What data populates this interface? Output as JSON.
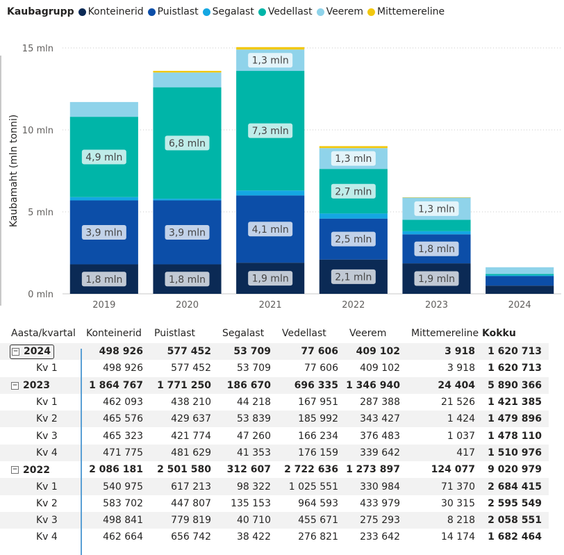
{
  "legend": {
    "title": "Kaubagrupp",
    "items": [
      {
        "name": "Konteinerid",
        "color": "#0b2a55"
      },
      {
        "name": "Puistlast",
        "color": "#0c4ea8"
      },
      {
        "name": "Segalast",
        "color": "#14a7e2"
      },
      {
        "name": "Vedellast",
        "color": "#00b5a8"
      },
      {
        "name": "Veerem",
        "color": "#8fd3ea"
      },
      {
        "name": "Mittemereline",
        "color": "#f2c80f"
      }
    ]
  },
  "chart_data": {
    "type": "bar",
    "stacked": true,
    "categories": [
      "2019",
      "2020",
      "2021",
      "2022",
      "2023",
      "2024"
    ],
    "ylabel": "Kaubamaht (mln tonni)",
    "ylim": [
      0,
      15
    ],
    "yticks": [
      "0 mln",
      "5 mln",
      "10 mln",
      "15 mln"
    ],
    "ytick_values": [
      0,
      5,
      10,
      15
    ],
    "grid": true,
    "legend_position": "top-left",
    "series": [
      {
        "name": "Konteinerid",
        "color": "#0b2a55",
        "values": [
          1.8,
          1.8,
          1.9,
          2.09,
          1.86,
          0.5
        ],
        "labels": [
          "1,8 mln",
          "1,8 mln",
          "1,9 mln",
          "2,1 mln",
          "1,9 mln",
          ""
        ]
      },
      {
        "name": "Puistlast",
        "color": "#0c4ea8",
        "values": [
          3.9,
          3.9,
          4.1,
          2.5,
          1.77,
          0.58
        ],
        "labels": [
          "3,9 mln",
          "3,9 mln",
          "4,1 mln",
          "2,5 mln",
          "1,8 mln",
          ""
        ]
      },
      {
        "name": "Segalast",
        "color": "#14a7e2",
        "values": [
          0.2,
          0.1,
          0.3,
          0.31,
          0.19,
          0.05
        ],
        "labels": [
          "",
          "",
          "",
          "",
          "",
          ""
        ]
      },
      {
        "name": "Vedellast",
        "color": "#00b5a8",
        "values": [
          4.9,
          6.8,
          7.3,
          2.72,
          0.7,
          0.08
        ],
        "labels": [
          "4,9 mln",
          "6,8 mln",
          "7,3 mln",
          "2,7 mln",
          "",
          ""
        ]
      },
      {
        "name": "Veerem",
        "color": "#8fd3ea",
        "values": [
          0.9,
          0.9,
          1.3,
          1.27,
          1.35,
          0.41
        ],
        "labels": [
          "",
          "",
          "1,3 mln",
          "1,3 mln",
          "1,3 mln",
          ""
        ]
      },
      {
        "name": "Mittemereline",
        "color": "#f2c80f",
        "values": [
          0.0,
          0.1,
          0.15,
          0.12,
          0.02,
          0.0
        ],
        "labels": [
          "",
          "",
          "",
          "",
          "",
          ""
        ]
      }
    ]
  },
  "table": {
    "headers": [
      "Aasta/kvartal",
      "Konteinerid",
      "Puistlast",
      "Segalast",
      "Vedellast",
      "Veerem",
      "Mittemereline",
      "Kokku"
    ],
    "rows": [
      {
        "type": "year",
        "selected": true,
        "cells": [
          "2024",
          "498 926",
          "577 452",
          "53 709",
          "77 606",
          "409 102",
          "3 918",
          "1 620 713"
        ]
      },
      {
        "type": "quarter",
        "cells": [
          "Kv 1",
          "498 926",
          "577 452",
          "53 709",
          "77 606",
          "409 102",
          "3 918",
          "1 620 713"
        ]
      },
      {
        "type": "year",
        "cells": [
          "2023",
          "1 864 767",
          "1 771 250",
          "186 670",
          "696 335",
          "1 346 940",
          "24 404",
          "5 890 366"
        ]
      },
      {
        "type": "quarter",
        "cells": [
          "Kv 1",
          "462 093",
          "438 210",
          "44 218",
          "167 951",
          "287 388",
          "21 526",
          "1 421 385"
        ]
      },
      {
        "type": "quarter",
        "cells": [
          "Kv 2",
          "465 576",
          "429 637",
          "53 839",
          "185 992",
          "343 427",
          "1 424",
          "1 479 896"
        ]
      },
      {
        "type": "quarter",
        "cells": [
          "Kv 3",
          "465 323",
          "421 774",
          "47 260",
          "166 234",
          "376 483",
          "1 037",
          "1 478 110"
        ]
      },
      {
        "type": "quarter",
        "cells": [
          "Kv 4",
          "471 775",
          "481 629",
          "41 353",
          "176 159",
          "339 642",
          "417",
          "1 510 976"
        ]
      },
      {
        "type": "year",
        "cells": [
          "2022",
          "2 086 181",
          "2 501 580",
          "312 607",
          "2 722 636",
          "1 273 897",
          "124 077",
          "9 020 979"
        ]
      },
      {
        "type": "quarter",
        "cells": [
          "Kv 1",
          "540 975",
          "617 213",
          "98 322",
          "1 025 551",
          "330 984",
          "71 370",
          "2 684 415"
        ]
      },
      {
        "type": "quarter",
        "cells": [
          "Kv 2",
          "583 702",
          "447 807",
          "135 153",
          "964 593",
          "433 979",
          "30 315",
          "2 595 549"
        ]
      },
      {
        "type": "quarter",
        "cells": [
          "Kv 3",
          "498 841",
          "779 819",
          "40 710",
          "455 671",
          "275 293",
          "8 218",
          "2 058 551"
        ]
      },
      {
        "type": "quarter",
        "cells": [
          "Kv 4",
          "462 664",
          "656 742",
          "38 422",
          "276 821",
          "233 642",
          "14 174",
          "1 682 464"
        ]
      }
    ]
  }
}
